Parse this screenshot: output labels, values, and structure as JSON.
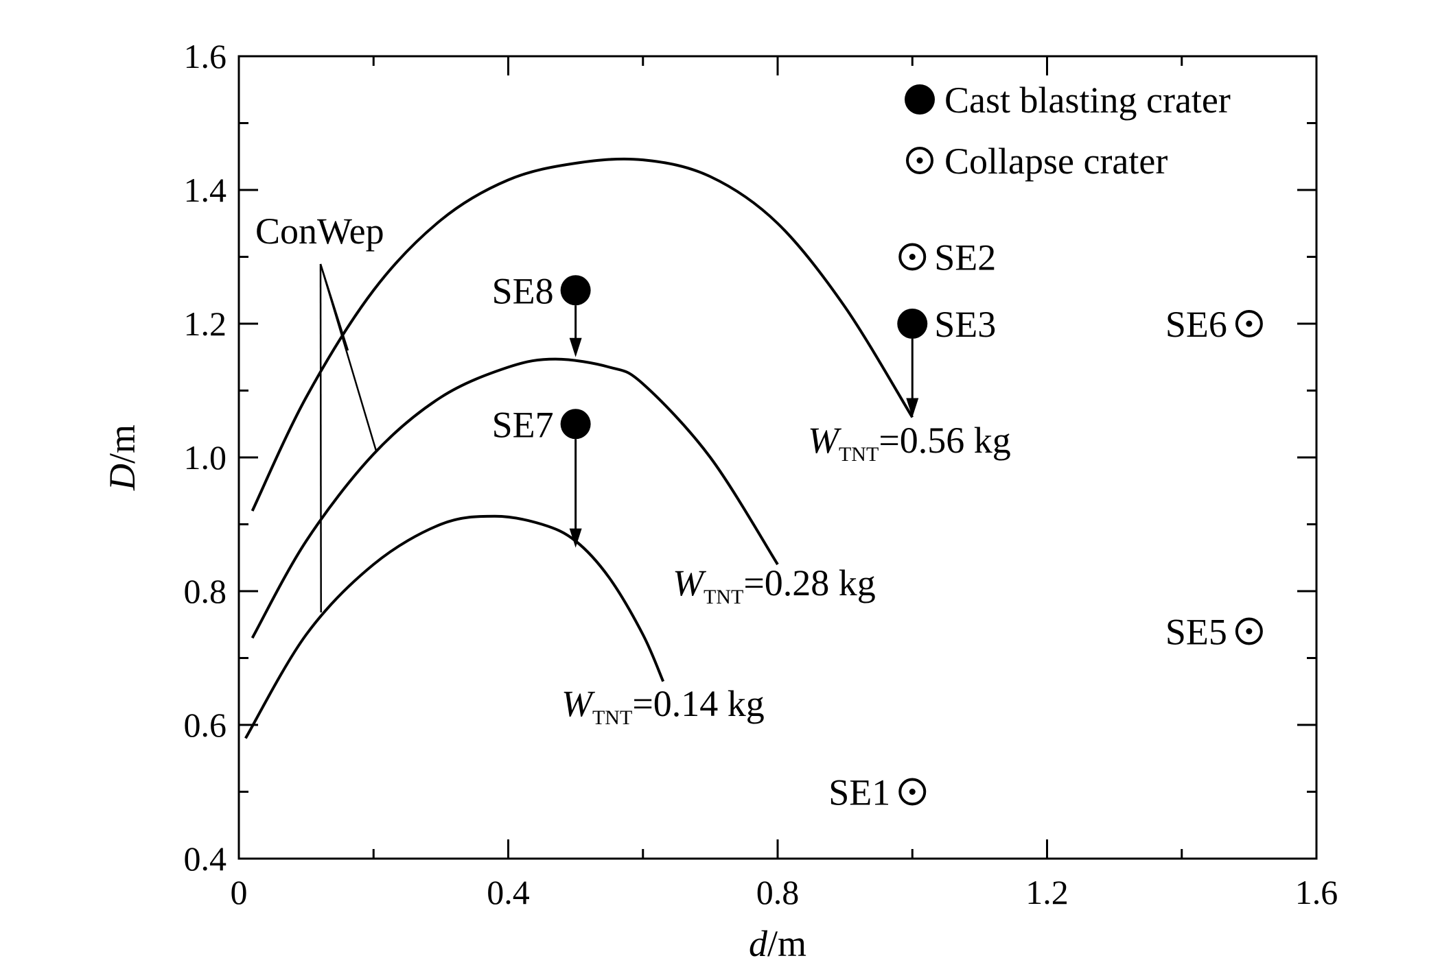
{
  "chart_data": {
    "type": "scatter",
    "xlabel": "d/m",
    "ylabel": "D/m",
    "xlim": [
      0,
      1.6
    ],
    "ylim": [
      0.4,
      1.6
    ],
    "x_ticks": [
      0,
      0.4,
      0.8,
      1.2,
      1.6
    ],
    "x_tick_labels": [
      "0",
      "0.4",
      "0.8",
      "1.2",
      "1.6"
    ],
    "y_ticks": [
      0.4,
      0.6,
      0.8,
      1.0,
      1.2,
      1.4,
      1.6
    ],
    "y_tick_labels": [
      "0.4",
      "0.6",
      "0.8",
      "1.0",
      "1.2",
      "1.4",
      "1.6"
    ],
    "legend_position": "top-right",
    "legend": [
      {
        "marker": "filled-circle",
        "label": "Cast blasting crater"
      },
      {
        "marker": "dotted-circle",
        "label": "Collapse crater"
      }
    ],
    "points": [
      {
        "label": "SE1",
        "x": 1.0,
        "y": 0.5,
        "type": "collapse"
      },
      {
        "label": "SE2",
        "x": 1.0,
        "y": 1.3,
        "type": "collapse"
      },
      {
        "label": "SE3",
        "x": 1.0,
        "y": 1.2,
        "type": "cast"
      },
      {
        "label": "SE5",
        "x": 1.5,
        "y": 0.74,
        "type": "collapse"
      },
      {
        "label": "SE6",
        "x": 1.5,
        "y": 1.2,
        "type": "collapse"
      },
      {
        "label": "SE7",
        "x": 0.5,
        "y": 1.05,
        "type": "cast"
      },
      {
        "label": "SE8",
        "x": 0.5,
        "y": 1.25,
        "type": "cast"
      }
    ],
    "series": [
      {
        "name": "W_TNT=0.56 kg",
        "label_main": "W",
        "label_sub": "TNT",
        "label_rest": "=0.56 kg",
        "x": [
          0.02,
          0.1,
          0.2,
          0.3,
          0.4,
          0.5,
          0.6,
          0.7,
          0.8,
          0.9,
          1.0
        ],
        "y": [
          0.92,
          1.09,
          1.25,
          1.355,
          1.415,
          1.44,
          1.445,
          1.42,
          1.35,
          1.225,
          1.06
        ]
      },
      {
        "name": "W_TNT=0.28 kg",
        "label_main": "W",
        "label_sub": "TNT",
        "label_rest": "=0.28 kg",
        "x": [
          0.02,
          0.1,
          0.2,
          0.3,
          0.4,
          0.47,
          0.55,
          0.6,
          0.7,
          0.8
        ],
        "y": [
          0.73,
          0.875,
          1.005,
          1.09,
          1.135,
          1.147,
          1.135,
          1.11,
          1.0,
          0.84
        ]
      },
      {
        "name": "W_TNT=0.14 kg",
        "label_main": "W",
        "label_sub": "TNT",
        "label_rest": "=0.14 kg",
        "x": [
          0.01,
          0.1,
          0.2,
          0.3,
          0.38,
          0.45,
          0.5,
          0.55,
          0.6,
          0.63
        ],
        "y": [
          0.58,
          0.735,
          0.84,
          0.9,
          0.912,
          0.9,
          0.875,
          0.82,
          0.735,
          0.665
        ]
      }
    ],
    "arrows": [
      {
        "from": [
          0.5,
          1.25
        ],
        "to": [
          0.5,
          1.15
        ]
      },
      {
        "from": [
          0.5,
          1.05
        ],
        "to": [
          0.5,
          0.865
        ]
      },
      {
        "from": [
          1.0,
          1.2
        ],
        "to": [
          1.0,
          1.06
        ]
      }
    ],
    "conwep_label": "ConWep"
  }
}
